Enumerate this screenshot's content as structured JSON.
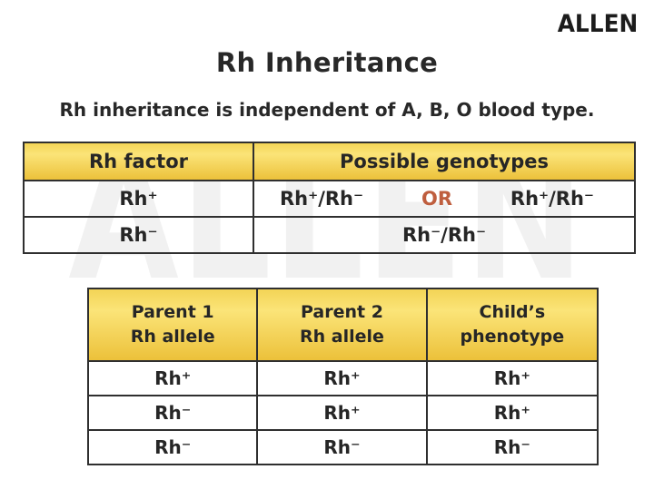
{
  "brand": {
    "logo_text": "ALLEN"
  },
  "page": {
    "title": "Rh Inheritance",
    "subtitle": "Rh inheritance is independent of A, B, O blood type.",
    "watermark_text": "ALLEN"
  },
  "colors": {
    "accent_or": "#bf5e3e",
    "header_gradient_top": "#f3d456",
    "header_gradient_mid": "#fbe478",
    "header_gradient_bottom": "#ecc13a",
    "border": "#2f2f2f",
    "text": "#262626"
  },
  "genotype_table": {
    "col_headers": [
      "Rh factor",
      "Possible genotypes"
    ],
    "row_positive": {
      "factor": "Rh⁺",
      "genotype_left": "Rh⁺/Rh⁻",
      "or_label": "OR",
      "genotype_right": "Rh⁺/Rh⁻"
    },
    "row_negative": {
      "factor": "Rh⁻",
      "genotype": "Rh⁻/Rh⁻"
    }
  },
  "parent_table": {
    "col_headers": [
      {
        "line1": "Parent 1",
        "line2": "Rh allele"
      },
      {
        "line1": "Parent 2",
        "line2": "Rh allele"
      },
      {
        "line1": "Child’s",
        "line2": "phenotype"
      }
    ],
    "rows": [
      {
        "parent1": "Rh⁺",
        "parent2": "Rh⁺",
        "child": "Rh⁺"
      },
      {
        "parent1": "Rh⁻",
        "parent2": "Rh⁺",
        "child": "Rh⁺"
      },
      {
        "parent1": "Rh⁻",
        "parent2": "Rh⁻",
        "child": "Rh⁻"
      }
    ]
  }
}
